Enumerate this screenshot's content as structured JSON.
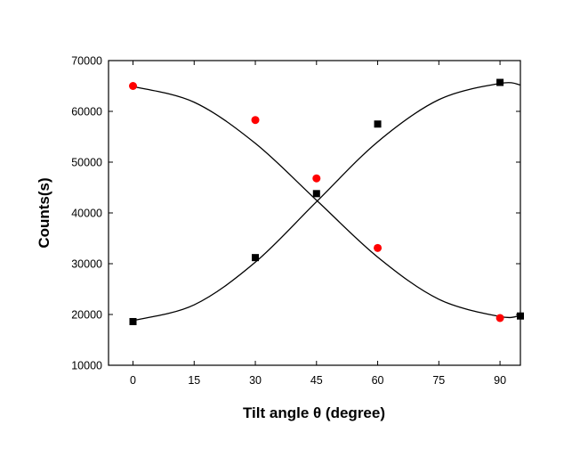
{
  "chart_data": {
    "type": "scatter",
    "xlabel": "Tilt angle θ (degree)",
    "ylabel": "Counts(s)",
    "xlim": [
      -6,
      95
    ],
    "ylim": [
      10000,
      70000
    ],
    "xticks": [
      0,
      15,
      30,
      45,
      60,
      75,
      90
    ],
    "yticks": [
      10000,
      20000,
      30000,
      40000,
      50000,
      60000,
      70000
    ],
    "grid": false,
    "series": [
      {
        "marker": "square",
        "color": "#000000",
        "x": [
          0,
          30,
          45,
          60,
          90,
          95
        ],
        "y": [
          18600,
          31200,
          43800,
          57500,
          65700,
          19700
        ]
      },
      {
        "marker": "circle",
        "color": "#ff0000",
        "x": [
          0,
          30,
          45,
          60,
          90
        ],
        "y": [
          65000,
          58300,
          46800,
          33100,
          19300
        ]
      }
    ],
    "fit_curves": [
      {
        "color": "#000000",
        "x": [
          0,
          15,
          30,
          45,
          60,
          75,
          90,
          95
        ],
        "y": [
          18800,
          21900,
          30300,
          42200,
          54000,
          62300,
          65500,
          65200
        ]
      },
      {
        "color": "#000000",
        "x": [
          0,
          15,
          30,
          45,
          60,
          75,
          90,
          95
        ],
        "y": [
          64900,
          61800,
          53700,
          42500,
          31300,
          23000,
          19600,
          19800
        ]
      }
    ]
  }
}
